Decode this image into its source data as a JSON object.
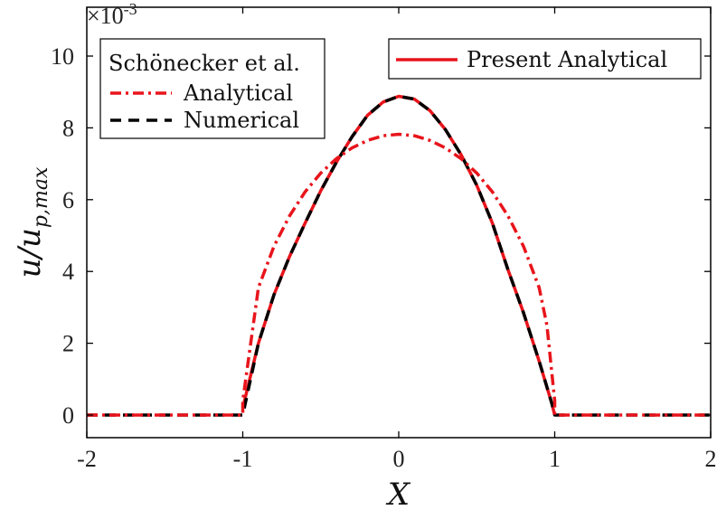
{
  "chart_data": {
    "type": "line",
    "xlabel": "X",
    "ylabel": "u/u",
    "ylabel_sub": "p,max",
    "y_exponent_base": "×10",
    "y_exponent_power": "-3",
    "xlim": [
      -2,
      2
    ],
    "ylim": [
      0,
      10.5
    ],
    "x_ticks": [
      "-2",
      "-1",
      "0",
      "1",
      "2"
    ],
    "y_ticks": [
      "0",
      "2",
      "4",
      "6",
      "8",
      "10"
    ],
    "legend_left": {
      "title": "Schönecker et al.",
      "entries": [
        "Analytical",
        "Numerical"
      ],
      "position": "top-left"
    },
    "legend_right": {
      "entries": [
        "Present Analytical"
      ],
      "position": "top-right"
    },
    "series": [
      {
        "name": "Present Analytical",
        "color": "#e8141b",
        "style": "solid",
        "x": [
          -1.0,
          -0.9,
          -0.8,
          -0.7,
          -0.6,
          -0.5,
          -0.4,
          -0.3,
          -0.2,
          -0.1,
          0.0,
          0.1,
          0.2,
          0.3,
          0.4,
          0.5,
          0.6,
          0.7,
          0.8,
          0.9,
          0.98,
          1.0
        ],
        "y": [
          0.2,
          2.0,
          3.35,
          4.42,
          5.35,
          6.25,
          7.04,
          7.75,
          8.35,
          8.72,
          8.88,
          8.8,
          8.48,
          7.95,
          7.25,
          6.4,
          5.35,
          4.05,
          2.85,
          1.5,
          0.35,
          0.0
        ]
      },
      {
        "name": "Analytical",
        "color": "#e8141b",
        "style": "dash-dot",
        "x": [
          -2.0,
          -1.0,
          -1.0,
          -0.9,
          -0.8,
          -0.7,
          -0.6,
          -0.5,
          -0.4,
          -0.3,
          -0.2,
          -0.1,
          0.0,
          0.1,
          0.2,
          0.3,
          0.4,
          0.5,
          0.6,
          0.7,
          0.8,
          0.9,
          0.95,
          1.0,
          1.0,
          2.0
        ],
        "y": [
          0.0,
          0.0,
          0.4,
          3.55,
          4.7,
          5.55,
          6.22,
          6.74,
          7.14,
          7.44,
          7.65,
          7.78,
          7.82,
          7.78,
          7.65,
          7.44,
          7.14,
          6.74,
          6.22,
          5.55,
          4.7,
          3.55,
          2.5,
          0.4,
          0.0,
          0.0
        ]
      },
      {
        "name": "Numerical",
        "color": "#000000",
        "style": "dashed",
        "x": [
          -2.0,
          -1.0,
          -0.9,
          -0.8,
          -0.7,
          -0.6,
          -0.5,
          -0.4,
          -0.3,
          -0.2,
          -0.1,
          0.0,
          0.1,
          0.2,
          0.3,
          0.4,
          0.5,
          0.6,
          0.7,
          0.8,
          0.9,
          0.98,
          1.0,
          2.0
        ],
        "y": [
          0.0,
          0.0,
          2.0,
          3.35,
          4.42,
          5.35,
          6.25,
          7.04,
          7.75,
          8.35,
          8.72,
          8.88,
          8.8,
          8.48,
          7.95,
          7.25,
          6.4,
          5.35,
          4.05,
          2.85,
          1.5,
          0.35,
          0.0,
          0.0
        ]
      }
    ]
  }
}
